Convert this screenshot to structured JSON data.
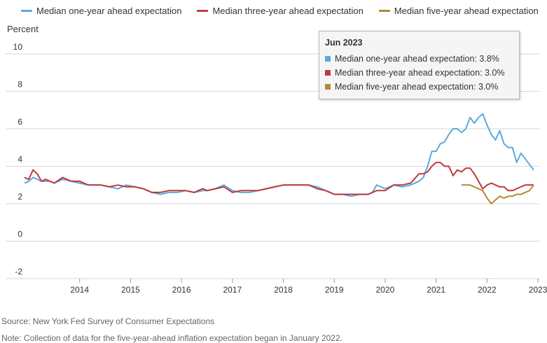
{
  "legend": [
    {
      "label": "Median one-year ahead expectation",
      "color": "#5aaae0"
    },
    {
      "label": "Median three-year ahead expectation",
      "color": "#c0393b"
    },
    {
      "label": "Median five-year ahead expectation",
      "color": "#b38a33"
    }
  ],
  "tooltip": {
    "title": "Jun 2023",
    "rows": [
      "Median one-year ahead expectation: 3.8%",
      "Median three-year ahead expectation: 3.0%",
      "Median five-year ahead expectation: 3.0%"
    ]
  },
  "footer": {
    "source": "Source: New York Fed Survey of Consumer Expectations",
    "note": "Note: Collection of data for the five-year-ahead inflation expectation began in January 2022."
  },
  "chart_data": {
    "type": "line",
    "ylabel": "Percent",
    "ylim": [
      -2,
      10
    ],
    "yticks": [
      -2,
      0,
      2,
      4,
      6,
      8,
      10
    ],
    "xlim": [
      "2013-06",
      "2023-06"
    ],
    "xticks": [
      "2014",
      "2015",
      "2016",
      "2017",
      "2018",
      "2019",
      "2020",
      "2021",
      "2022",
      "2023"
    ],
    "grid": "horizontal",
    "legend_position": "top",
    "series": [
      {
        "name": "Median one-year ahead expectation",
        "color": "#5aaae0",
        "x": [
          "2013-06",
          "2013-07",
          "2013-08",
          "2013-09",
          "2013-10",
          "2013-12",
          "2014-01",
          "2014-03",
          "2014-05",
          "2014-07",
          "2014-09",
          "2014-12",
          "2015-02",
          "2015-04",
          "2015-06",
          "2015-08",
          "2015-10",
          "2015-12",
          "2016-02",
          "2016-04",
          "2016-06",
          "2016-08",
          "2016-10",
          "2016-12",
          "2017-01",
          "2017-03",
          "2017-05",
          "2017-07",
          "2017-09",
          "2017-11",
          "2018-01",
          "2018-03",
          "2018-05",
          "2018-07",
          "2018-09",
          "2018-11",
          "2019-01",
          "2019-03",
          "2019-05",
          "2019-07",
          "2019-09",
          "2019-11",
          "2020-01",
          "2020-03",
          "2020-04",
          "2020-05",
          "2020-07",
          "2020-09",
          "2020-11",
          "2021-01",
          "2021-03",
          "2021-04",
          "2021-05",
          "2021-06",
          "2021-07",
          "2021-08",
          "2021-09",
          "2021-10",
          "2021-11",
          "2021-12",
          "2022-01",
          "2022-02",
          "2022-03",
          "2022-04",
          "2022-05",
          "2022-06",
          "2022-07",
          "2022-08",
          "2022-09",
          "2022-10",
          "2022-11",
          "2022-12",
          "2023-01",
          "2023-02",
          "2023-03",
          "2023-04",
          "2023-05",
          "2023-06"
        ],
        "y": [
          3.1,
          3.2,
          3.4,
          3.3,
          3.2,
          3.2,
          3.1,
          3.3,
          3.2,
          3.1,
          3.0,
          3.0,
          2.9,
          2.8,
          3.0,
          2.9,
          2.8,
          2.6,
          2.5,
          2.6,
          2.6,
          2.7,
          2.6,
          2.7,
          2.7,
          2.8,
          3.0,
          2.7,
          2.6,
          2.6,
          2.7,
          2.8,
          2.9,
          3.0,
          3.0,
          3.0,
          3.0,
          2.9,
          2.7,
          2.5,
          2.5,
          2.4,
          2.5,
          2.5,
          2.6,
          3.0,
          2.8,
          3.0,
          2.9,
          3.0,
          3.2,
          3.4,
          4.0,
          4.8,
          4.8,
          5.2,
          5.3,
          5.7,
          6.0,
          6.0,
          5.8,
          6.0,
          6.6,
          6.3,
          6.6,
          6.8,
          6.2,
          5.7,
          5.4,
          5.9,
          5.2,
          5.0,
          5.0,
          4.2,
          4.7,
          4.4,
          4.1,
          3.8
        ]
      },
      {
        "name": "Median three-year ahead expectation",
        "color": "#c0393b",
        "x": [
          "2013-06",
          "2013-07",
          "2013-08",
          "2013-09",
          "2013-10",
          "2013-11",
          "2013-12",
          "2014-01",
          "2014-03",
          "2014-05",
          "2014-07",
          "2014-09",
          "2014-12",
          "2015-02",
          "2015-04",
          "2015-06",
          "2015-08",
          "2015-10",
          "2015-12",
          "2016-02",
          "2016-04",
          "2016-06",
          "2016-08",
          "2016-10",
          "2016-12",
          "2017-01",
          "2017-03",
          "2017-05",
          "2017-07",
          "2017-09",
          "2017-11",
          "2018-01",
          "2018-03",
          "2018-05",
          "2018-07",
          "2018-09",
          "2018-11",
          "2019-01",
          "2019-03",
          "2019-05",
          "2019-07",
          "2019-09",
          "2019-11",
          "2020-01",
          "2020-03",
          "2020-04",
          "2020-05",
          "2020-07",
          "2020-09",
          "2020-11",
          "2021-01",
          "2021-03",
          "2021-04",
          "2021-05",
          "2021-06",
          "2021-07",
          "2021-08",
          "2021-09",
          "2021-10",
          "2021-11",
          "2021-12",
          "2022-01",
          "2022-02",
          "2022-03",
          "2022-04",
          "2022-05",
          "2022-06",
          "2022-07",
          "2022-08",
          "2022-09",
          "2022-10",
          "2022-11",
          "2022-12",
          "2023-01",
          "2023-02",
          "2023-03",
          "2023-04",
          "2023-05",
          "2023-06"
        ],
        "y": [
          3.4,
          3.3,
          3.8,
          3.6,
          3.2,
          3.3,
          3.2,
          3.1,
          3.4,
          3.2,
          3.2,
          3.0,
          3.0,
          2.9,
          3.0,
          2.9,
          2.9,
          2.8,
          2.6,
          2.6,
          2.7,
          2.7,
          2.7,
          2.6,
          2.8,
          2.7,
          2.8,
          2.9,
          2.6,
          2.7,
          2.7,
          2.7,
          2.8,
          2.9,
          3.0,
          3.0,
          3.0,
          3.0,
          2.8,
          2.7,
          2.5,
          2.5,
          2.5,
          2.5,
          2.5,
          2.6,
          2.7,
          2.7,
          3.0,
          3.0,
          3.1,
          3.6,
          3.6,
          3.7,
          4.0,
          4.2,
          4.2,
          4.0,
          4.0,
          3.5,
          3.8,
          3.7,
          3.9,
          3.9,
          3.6,
          3.2,
          2.8,
          3.0,
          3.1,
          3.0,
          2.9,
          2.9,
          2.7,
          2.7,
          2.8,
          2.9,
          3.0,
          3.0,
          3.0
        ]
      },
      {
        "name": "Median five-year ahead expectation",
        "color": "#b38a33",
        "x": [
          "2022-01",
          "2022-02",
          "2022-03",
          "2022-04",
          "2022-05",
          "2022-06",
          "2022-07",
          "2022-08",
          "2022-09",
          "2022-10",
          "2022-11",
          "2022-12",
          "2023-01",
          "2023-02",
          "2023-03",
          "2023-04",
          "2023-05",
          "2023-06"
        ],
        "y": [
          3.0,
          3.0,
          3.0,
          2.9,
          2.8,
          2.7,
          2.3,
          2.0,
          2.2,
          2.4,
          2.3,
          2.4,
          2.4,
          2.5,
          2.5,
          2.6,
          2.7,
          3.0
        ]
      }
    ]
  }
}
